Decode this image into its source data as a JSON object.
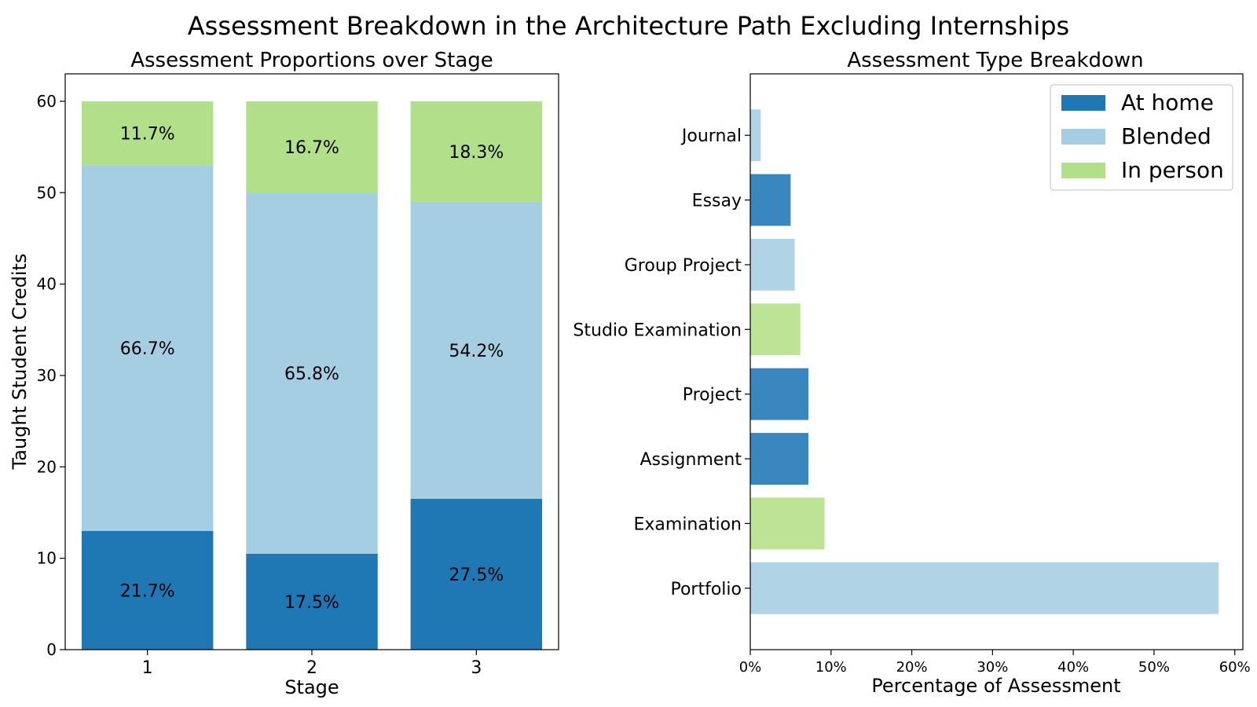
{
  "figure": {
    "title": "Assessment Breakdown in the  Architecture Path Excluding Internships"
  },
  "colors": {
    "at_home": "#1f77b4",
    "blended": "#a6cee3",
    "in_person": "#b2df8a"
  },
  "chart_data": [
    {
      "type": "bar",
      "stacked": true,
      "title": "Assessment Proportions over Stage",
      "xlabel": "Stage",
      "ylabel": "Taught Student Credits",
      "categories": [
        "1",
        "2",
        "3"
      ],
      "ylim": [
        0,
        63
      ],
      "yticks": [
        0,
        10,
        20,
        30,
        40,
        50,
        60
      ],
      "series": [
        {
          "name": "At home",
          "color_key": "at_home",
          "values": [
            13,
            10.5,
            16.5
          ],
          "labels": [
            "21.7%",
            "17.5%",
            "27.5%"
          ]
        },
        {
          "name": "Blended",
          "color_key": "blended",
          "values": [
            40,
            39.5,
            32.5
          ],
          "labels": [
            "66.7%",
            "65.8%",
            "54.2%"
          ]
        },
        {
          "name": "In person",
          "color_key": "in_person",
          "values": [
            7,
            10,
            11
          ],
          "labels": [
            "11.7%",
            "16.7%",
            "18.3%"
          ]
        }
      ]
    },
    {
      "type": "bar",
      "orientation": "horizontal",
      "title": "Assessment Type Breakdown",
      "xlabel": "Percentage of Assessment",
      "ylabel": "",
      "xlim": [
        0,
        61
      ],
      "xticks": [
        0,
        10,
        20,
        30,
        40,
        50,
        60
      ],
      "xtick_labels": [
        "0%",
        "10%",
        "20%",
        "30%",
        "40%",
        "50%",
        "60%"
      ],
      "categories": [
        "Portfolio",
        "Examination",
        "Assignment",
        "Project",
        "Studio Examination",
        "Group Project",
        "Essay",
        "Journal"
      ],
      "values": [
        58.0,
        9.2,
        7.2,
        7.2,
        6.2,
        5.5,
        5.0,
        1.3
      ],
      "mode": [
        "Blended",
        "In person",
        "At home",
        "At home",
        "In person",
        "Blended",
        "At home",
        "Blended"
      ],
      "legend": {
        "position": "top-right",
        "entries": [
          {
            "label": "At home",
            "color_key": "at_home"
          },
          {
            "label": "Blended",
            "color_key": "blended"
          },
          {
            "label": "In person",
            "color_key": "in_person"
          }
        ]
      }
    }
  ]
}
